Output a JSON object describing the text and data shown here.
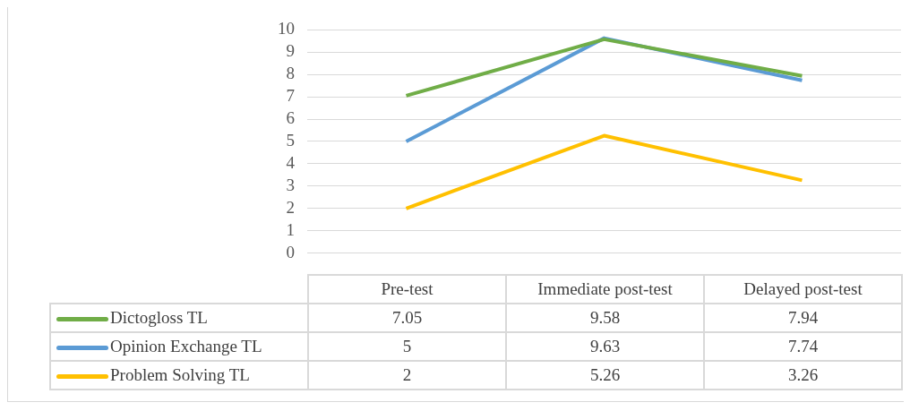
{
  "chart_data": {
    "type": "line",
    "categories": [
      "Pre-test",
      "Immediate post-test",
      "Delayed post-test"
    ],
    "series": [
      {
        "name": "Dictogloss TL",
        "color": "#70ad47",
        "values": [
          7.05,
          9.58,
          7.94
        ]
      },
      {
        "name": "Opinion Exchange TL",
        "color": "#5b9bd5",
        "values": [
          5,
          9.63,
          7.74
        ]
      },
      {
        "name": "Problem Solving TL",
        "color": "#ffc000",
        "values": [
          2,
          5.26,
          3.26
        ]
      }
    ],
    "ylim": [
      0,
      10
    ],
    "yticks": [
      0,
      1,
      2,
      3,
      4,
      5,
      6,
      7,
      8,
      9,
      10
    ],
    "grid": "y",
    "legend": "bottom",
    "data_labels": true,
    "marker": "none",
    "line_style": "solid"
  }
}
